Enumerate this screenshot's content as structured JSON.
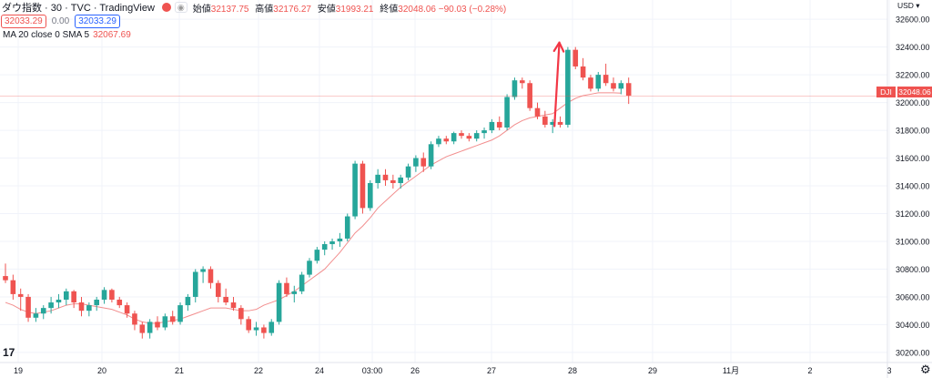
{
  "header": {
    "symbol": "ダウ指数 · 30 · TVC · TradingView",
    "ohlc": [
      {
        "label": "始値",
        "value": "32137.75"
      },
      {
        "label": "高値",
        "value": "32176.27"
      },
      {
        "label": "安値",
        "value": "31993.21"
      },
      {
        "label": "終値",
        "value": "32048.06 −90.03 (−0.28%)"
      }
    ],
    "bid": "32033.29",
    "spread": "0.00",
    "ask": "32033.29",
    "indicator_label": "MA 20 close 0 SMA 5",
    "indicator_value": "32067.69",
    "price_tag": "32048.06",
    "symbol_tag": "DJI",
    "logo_text": "17",
    "settings_icon": "gear-icon"
  },
  "colors": {
    "up": "#26a69a",
    "down": "#ef5350",
    "ma": "#f28e8e",
    "arrow": "#f23645"
  },
  "chart_data": {
    "type": "candlestick",
    "y_unit": "USD",
    "ylim": [
      30160,
      32660
    ],
    "y_ticks": [
      "32600.00",
      "32400.00",
      "32200.00",
      "32000.00",
      "31800.00",
      "31600.00",
      "31400.00",
      "31200.00",
      "31000.00",
      "30800.00",
      "30600.00",
      "30400.00",
      "30200.00"
    ],
    "x_ticks": [
      "19",
      "20",
      "21",
      "22",
      "24",
      "03:00",
      "26",
      "27",
      "28",
      "29",
      "11月",
      "2",
      "3"
    ],
    "last_price": 32048.06,
    "candles": [
      {
        "o": 30750,
        "h": 30840,
        "l": 30700,
        "c": 30720
      },
      {
        "o": 30720,
        "h": 30760,
        "l": 30580,
        "c": 30620
      },
      {
        "o": 30620,
        "h": 30660,
        "l": 30500,
        "c": 30600
      },
      {
        "o": 30600,
        "h": 30620,
        "l": 30420,
        "c": 30450
      },
      {
        "o": 30450,
        "h": 30520,
        "l": 30420,
        "c": 30480
      },
      {
        "o": 30480,
        "h": 30540,
        "l": 30440,
        "c": 30520
      },
      {
        "o": 30520,
        "h": 30600,
        "l": 30480,
        "c": 30560
      },
      {
        "o": 30560,
        "h": 30620,
        "l": 30520,
        "c": 30580
      },
      {
        "o": 30580,
        "h": 30660,
        "l": 30540,
        "c": 30640
      },
      {
        "o": 30640,
        "h": 30650,
        "l": 30520,
        "c": 30560
      },
      {
        "o": 30560,
        "h": 30600,
        "l": 30460,
        "c": 30500
      },
      {
        "o": 30500,
        "h": 30560,
        "l": 30460,
        "c": 30540
      },
      {
        "o": 30540,
        "h": 30600,
        "l": 30500,
        "c": 30580
      },
      {
        "o": 30580,
        "h": 30670,
        "l": 30550,
        "c": 30650
      },
      {
        "o": 30650,
        "h": 30660,
        "l": 30560,
        "c": 30580
      },
      {
        "o": 30580,
        "h": 30600,
        "l": 30520,
        "c": 30540
      },
      {
        "o": 30540,
        "h": 30560,
        "l": 30450,
        "c": 30480
      },
      {
        "o": 30480,
        "h": 30500,
        "l": 30360,
        "c": 30400
      },
      {
        "o": 30400,
        "h": 30420,
        "l": 30300,
        "c": 30340
      },
      {
        "o": 30340,
        "h": 30440,
        "l": 30300,
        "c": 30420
      },
      {
        "o": 30420,
        "h": 30460,
        "l": 30360,
        "c": 30380
      },
      {
        "o": 30380,
        "h": 30480,
        "l": 30360,
        "c": 30460
      },
      {
        "o": 30460,
        "h": 30500,
        "l": 30400,
        "c": 30420
      },
      {
        "o": 30420,
        "h": 30560,
        "l": 30400,
        "c": 30540
      },
      {
        "o": 30540,
        "h": 30620,
        "l": 30500,
        "c": 30600
      },
      {
        "o": 30600,
        "h": 30800,
        "l": 30560,
        "c": 30780
      },
      {
        "o": 30780,
        "h": 30820,
        "l": 30700,
        "c": 30800
      },
      {
        "o": 30800,
        "h": 30820,
        "l": 30660,
        "c": 30700
      },
      {
        "o": 30700,
        "h": 30720,
        "l": 30560,
        "c": 30600
      },
      {
        "o": 30600,
        "h": 30660,
        "l": 30540,
        "c": 30560
      },
      {
        "o": 30560,
        "h": 30600,
        "l": 30500,
        "c": 30520
      },
      {
        "o": 30520,
        "h": 30540,
        "l": 30400,
        "c": 30440
      },
      {
        "o": 30440,
        "h": 30460,
        "l": 30340,
        "c": 30360
      },
      {
        "o": 30360,
        "h": 30420,
        "l": 30320,
        "c": 30380
      },
      {
        "o": 30380,
        "h": 30400,
        "l": 30300,
        "c": 30340
      },
      {
        "o": 30340,
        "h": 30440,
        "l": 30320,
        "c": 30420
      },
      {
        "o": 30420,
        "h": 30720,
        "l": 30400,
        "c": 30700
      },
      {
        "o": 30700,
        "h": 30740,
        "l": 30600,
        "c": 30620
      },
      {
        "o": 30620,
        "h": 30680,
        "l": 30560,
        "c": 30640
      },
      {
        "o": 30640,
        "h": 30780,
        "l": 30620,
        "c": 30760
      },
      {
        "o": 30760,
        "h": 30880,
        "l": 30740,
        "c": 30860
      },
      {
        "o": 30860,
        "h": 30960,
        "l": 30840,
        "c": 30940
      },
      {
        "o": 30940,
        "h": 31000,
        "l": 30900,
        "c": 30980
      },
      {
        "o": 30980,
        "h": 31020,
        "l": 30940,
        "c": 31000
      },
      {
        "o": 31000,
        "h": 31060,
        "l": 30960,
        "c": 31020
      },
      {
        "o": 31020,
        "h": 31200,
        "l": 31000,
        "c": 31180
      },
      {
        "o": 31180,
        "h": 31580,
        "l": 31160,
        "c": 31560
      },
      {
        "o": 31560,
        "h": 31580,
        "l": 31200,
        "c": 31240
      },
      {
        "o": 31240,
        "h": 31440,
        "l": 31220,
        "c": 31420
      },
      {
        "o": 31420,
        "h": 31520,
        "l": 31380,
        "c": 31480
      },
      {
        "o": 31480,
        "h": 31520,
        "l": 31400,
        "c": 31440
      },
      {
        "o": 31440,
        "h": 31480,
        "l": 31380,
        "c": 31420
      },
      {
        "o": 31420,
        "h": 31480,
        "l": 31380,
        "c": 31460
      },
      {
        "o": 31460,
        "h": 31560,
        "l": 31440,
        "c": 31540
      },
      {
        "o": 31540,
        "h": 31620,
        "l": 31500,
        "c": 31600
      },
      {
        "o": 31600,
        "h": 31640,
        "l": 31500,
        "c": 31540
      },
      {
        "o": 31540,
        "h": 31720,
        "l": 31520,
        "c": 31700
      },
      {
        "o": 31700,
        "h": 31760,
        "l": 31680,
        "c": 31740
      },
      {
        "o": 31740,
        "h": 31760,
        "l": 31700,
        "c": 31720
      },
      {
        "o": 31720,
        "h": 31790,
        "l": 31700,
        "c": 31780
      },
      {
        "o": 31780,
        "h": 31800,
        "l": 31740,
        "c": 31760
      },
      {
        "o": 31760,
        "h": 31780,
        "l": 31720,
        "c": 31740
      },
      {
        "o": 31740,
        "h": 31800,
        "l": 31720,
        "c": 31780
      },
      {
        "o": 31780,
        "h": 31820,
        "l": 31740,
        "c": 31800
      },
      {
        "o": 31800,
        "h": 31880,
        "l": 31780,
        "c": 31860
      },
      {
        "o": 31860,
        "h": 31900,
        "l": 31800,
        "c": 31820
      },
      {
        "o": 31820,
        "h": 32060,
        "l": 31800,
        "c": 32040
      },
      {
        "o": 32040,
        "h": 32180,
        "l": 32020,
        "c": 32160
      },
      {
        "o": 32160,
        "h": 32180,
        "l": 32100,
        "c": 32140
      },
      {
        "o": 32140,
        "h": 32160,
        "l": 31940,
        "c": 31960
      },
      {
        "o": 31960,
        "h": 32000,
        "l": 31880,
        "c": 31900
      },
      {
        "o": 31900,
        "h": 31940,
        "l": 31820,
        "c": 31840
      },
      {
        "o": 31840,
        "h": 31880,
        "l": 31780,
        "c": 31860
      },
      {
        "o": 31860,
        "h": 31900,
        "l": 31820,
        "c": 31840
      },
      {
        "o": 31840,
        "h": 32400,
        "l": 31820,
        "c": 32380
      },
      {
        "o": 32380,
        "h": 32400,
        "l": 32240,
        "c": 32260
      },
      {
        "o": 32260,
        "h": 32320,
        "l": 32160,
        "c": 32180
      },
      {
        "o": 32180,
        "h": 32200,
        "l": 32080,
        "c": 32100
      },
      {
        "o": 32100,
        "h": 32220,
        "l": 32080,
        "c": 32200
      },
      {
        "o": 32200,
        "h": 32280,
        "l": 32120,
        "c": 32140
      },
      {
        "o": 32140,
        "h": 32180,
        "l": 32080,
        "c": 32100
      },
      {
        "o": 32100,
        "h": 32160,
        "l": 32060,
        "c": 32140
      },
      {
        "o": 32140,
        "h": 32180,
        "l": 31990,
        "c": 32050
      }
    ],
    "ma_series": {
      "name": "MA 20 close 0 SMA 5",
      "values": [
        30560,
        30540,
        30510,
        30490,
        30480,
        30490,
        30500,
        30520,
        30540,
        30550,
        30550,
        30540,
        30530,
        30520,
        30510,
        30490,
        30470,
        30440,
        30420,
        30410,
        30410,
        30420,
        30430,
        30440,
        30460,
        30480,
        30500,
        30520,
        30520,
        30520,
        30510,
        30500,
        30500,
        30510,
        30540,
        30560,
        30580,
        30610,
        30640,
        30680,
        30720,
        30760,
        30800,
        30860,
        30920,
        30990,
        31060,
        31110,
        31170,
        31240,
        31290,
        31340,
        31390,
        31430,
        31470,
        31510,
        31550,
        31580,
        31610,
        31630,
        31650,
        31670,
        31690,
        31710,
        31730,
        31760,
        31800,
        31840,
        31870,
        31890,
        31900,
        31910,
        31920,
        31960,
        32000,
        32030,
        32050,
        32060,
        32070,
        32070,
        32070,
        32068
      ]
    },
    "annotation": {
      "type": "arrow",
      "from_candle": 72,
      "from_price": 31830,
      "to_candle": 73,
      "to_price": 32380
    }
  }
}
